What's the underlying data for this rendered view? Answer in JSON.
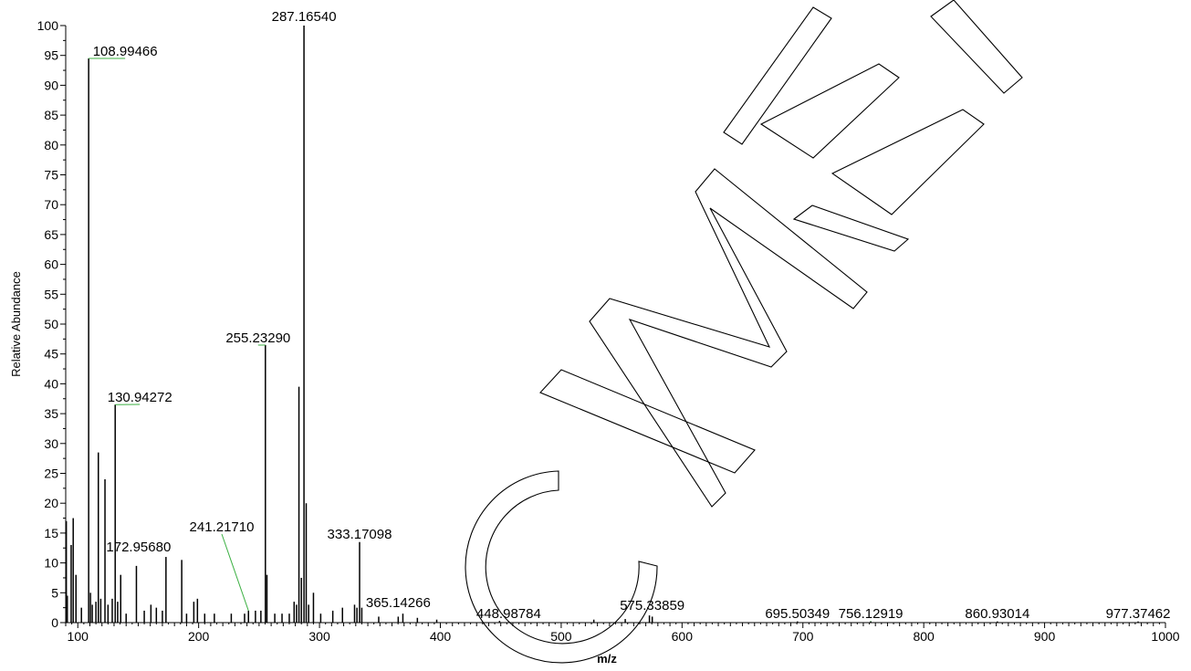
{
  "chart_data": {
    "type": "bar",
    "xlabel": "m/z",
    "ylabel": "Relative Abundance",
    "xlim": [
      90,
      1000
    ],
    "ylim": [
      0,
      100
    ],
    "x_ticks": [
      100,
      200,
      300,
      400,
      500,
      600,
      700,
      800,
      900,
      1000
    ],
    "y_ticks": [
      0,
      5,
      10,
      15,
      20,
      25,
      30,
      35,
      40,
      45,
      50,
      55,
      60,
      65,
      70,
      75,
      80,
      85,
      90,
      95,
      100
    ],
    "grid": false,
    "labeled_peaks": [
      {
        "mz": 108.99466,
        "label": "108.99466",
        "intensity": 94.5
      },
      {
        "mz": 130.94272,
        "label": "130.94272",
        "intensity": 36.5
      },
      {
        "mz": 172.9568,
        "label": "172.95680",
        "intensity": 11.0
      },
      {
        "mz": 241.2171,
        "label": "241.21710",
        "intensity": 2.0
      },
      {
        "mz": 255.2329,
        "label": "255.23290",
        "intensity": 46.5
      },
      {
        "mz": 287.1654,
        "label": "287.16540",
        "intensity": 100.0
      },
      {
        "mz": 333.17098,
        "label": "333.17098",
        "intensity": 13.5
      },
      {
        "mz": 365.14266,
        "label": "365.14266",
        "intensity": 1.0
      },
      {
        "mz": 448.98784,
        "label": "448.98784",
        "intensity": 0.3
      },
      {
        "mz": 575.33859,
        "label": "575.33859",
        "intensity": 1.0
      },
      {
        "mz": 695.50349,
        "label": "695.50349",
        "intensity": 0.2
      },
      {
        "mz": 756.12919,
        "label": "756.12919",
        "intensity": 0.2
      },
      {
        "mz": 860.93014,
        "label": "860.93014",
        "intensity": 0.2
      },
      {
        "mz": 977.37462,
        "label": "977.37462",
        "intensity": 0.2
      }
    ],
    "other_peaks": [
      {
        "mz": 90.5,
        "intensity": 17.0
      },
      {
        "mz": 91.3,
        "intensity": 4.5
      },
      {
        "mz": 94.5,
        "intensity": 13.0
      },
      {
        "mz": 96.2,
        "intensity": 17.5
      },
      {
        "mz": 98.5,
        "intensity": 8.0
      },
      {
        "mz": 103.0,
        "intensity": 2.5
      },
      {
        "mz": 110.5,
        "intensity": 5.0
      },
      {
        "mz": 112.0,
        "intensity": 3.0
      },
      {
        "mz": 115.0,
        "intensity": 3.5
      },
      {
        "mz": 117.0,
        "intensity": 28.5
      },
      {
        "mz": 119.0,
        "intensity": 4.0
      },
      {
        "mz": 122.5,
        "intensity": 24.0
      },
      {
        "mz": 125.0,
        "intensity": 3.0
      },
      {
        "mz": 128.5,
        "intensity": 4.0
      },
      {
        "mz": 133.0,
        "intensity": 3.5
      },
      {
        "mz": 135.5,
        "intensity": 8.0
      },
      {
        "mz": 140.0,
        "intensity": 1.5
      },
      {
        "mz": 148.5,
        "intensity": 9.5
      },
      {
        "mz": 155.0,
        "intensity": 2.0
      },
      {
        "mz": 160.5,
        "intensity": 3.0
      },
      {
        "mz": 165.0,
        "intensity": 2.5
      },
      {
        "mz": 170.0,
        "intensity": 2.0
      },
      {
        "mz": 186.0,
        "intensity": 10.5
      },
      {
        "mz": 190.0,
        "intensity": 1.5
      },
      {
        "mz": 196.0,
        "intensity": 3.5
      },
      {
        "mz": 199.0,
        "intensity": 4.0
      },
      {
        "mz": 205.0,
        "intensity": 1.5
      },
      {
        "mz": 213.0,
        "intensity": 1.5
      },
      {
        "mz": 227.0,
        "intensity": 1.5
      },
      {
        "mz": 238.0,
        "intensity": 1.5
      },
      {
        "mz": 247.0,
        "intensity": 2.0
      },
      {
        "mz": 251.5,
        "intensity": 2.0
      },
      {
        "mz": 256.5,
        "intensity": 8.0
      },
      {
        "mz": 263.0,
        "intensity": 1.5
      },
      {
        "mz": 269.0,
        "intensity": 1.5
      },
      {
        "mz": 275.0,
        "intensity": 1.5
      },
      {
        "mz": 279.0,
        "intensity": 3.5
      },
      {
        "mz": 281.0,
        "intensity": 3.0
      },
      {
        "mz": 283.0,
        "intensity": 39.5
      },
      {
        "mz": 285.0,
        "intensity": 7.5
      },
      {
        "mz": 289.0,
        "intensity": 20.0
      },
      {
        "mz": 291.0,
        "intensity": 3.0
      },
      {
        "mz": 295.0,
        "intensity": 5.0
      },
      {
        "mz": 301.0,
        "intensity": 1.5
      },
      {
        "mz": 311.0,
        "intensity": 2.0
      },
      {
        "mz": 319.0,
        "intensity": 2.5
      },
      {
        "mz": 329.0,
        "intensity": 3.0
      },
      {
        "mz": 331.0,
        "intensity": 2.5
      },
      {
        "mz": 335.0,
        "intensity": 2.5
      },
      {
        "mz": 349.0,
        "intensity": 1.0
      },
      {
        "mz": 369.0,
        "intensity": 1.5
      },
      {
        "mz": 381.0,
        "intensity": 0.8
      },
      {
        "mz": 397.0,
        "intensity": 0.5
      },
      {
        "mz": 527.0,
        "intensity": 0.5
      },
      {
        "mz": 553.0,
        "intensity": 0.6
      },
      {
        "mz": 573.0,
        "intensity": 1.2
      }
    ],
    "watermark": "CIMEI"
  }
}
